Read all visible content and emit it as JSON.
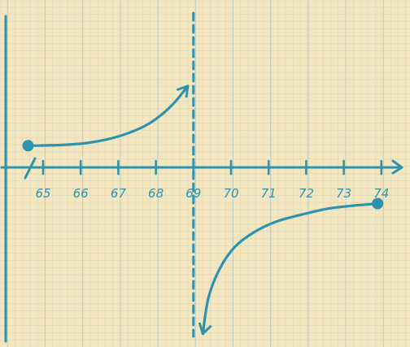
{
  "chart_data": {
    "type": "line",
    "title": "",
    "xlabel": "",
    "ylabel": "",
    "grid": true,
    "colors": {
      "ink": "#2f93ad",
      "paper": "#f4e6bf",
      "grid": "#b9c7c4"
    },
    "x_axis": {
      "axis_break_between_origin_and": 65,
      "ticks": [
        "65",
        "66",
        "67",
        "68",
        "69",
        "70",
        "71",
        "72",
        "73",
        "74"
      ],
      "arrow": "right"
    },
    "vertical_asymptote": {
      "x": 69,
      "style": "dashed"
    },
    "series": [
      {
        "branch": "left",
        "start_point": {
          "x": 64.6,
          "y": 0.6,
          "marker": "filled-dot"
        },
        "end": "arrow-up",
        "points": [
          [
            64.6,
            0.6
          ],
          [
            65.5,
            0.62
          ],
          [
            66.2,
            0.68
          ],
          [
            66.8,
            0.8
          ],
          [
            67.3,
            0.96
          ],
          [
            67.8,
            1.2
          ],
          [
            68.2,
            1.5
          ],
          [
            68.5,
            1.8
          ],
          [
            68.7,
            2.05
          ],
          [
            68.85,
            2.25
          ]
        ]
      },
      {
        "branch": "right",
        "end_point": {
          "x": 73.9,
          "y": -1.0,
          "marker": "filled-dot"
        },
        "start": "arrow-down",
        "points": [
          [
            69.25,
            -4.6
          ],
          [
            69.4,
            -3.6
          ],
          [
            69.7,
            -2.8
          ],
          [
            70.1,
            -2.2
          ],
          [
            70.6,
            -1.8
          ],
          [
            71.2,
            -1.5
          ],
          [
            71.9,
            -1.3
          ],
          [
            72.7,
            -1.12
          ],
          [
            73.9,
            -1.0
          ]
        ]
      }
    ],
    "ylim": [
      -4.7,
      2.3
    ],
    "xlim": [
      64.3,
      74.5
    ]
  }
}
